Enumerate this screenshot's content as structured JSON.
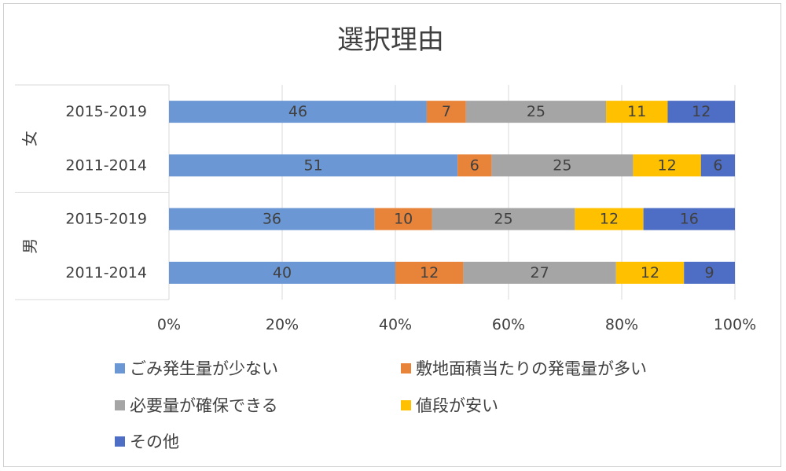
{
  "chart_data": {
    "type": "bar",
    "orientation": "horizontal",
    "stacking": "percent",
    "title": "選択理由",
    "groups": [
      {
        "label": "女",
        "rows": [
          {
            "label": "2015-2019",
            "values": [
              46,
              7,
              25,
              11,
              12
            ]
          },
          {
            "label": "2011-2014",
            "values": [
              51,
              6,
              25,
              12,
              6
            ]
          }
        ]
      },
      {
        "label": "男",
        "rows": [
          {
            "label": "2015-2019",
            "values": [
              36,
              10,
              25,
              12,
              16
            ]
          },
          {
            "label": "2011-2014",
            "values": [
              40,
              12,
              27,
              12,
              9
            ]
          }
        ]
      }
    ],
    "series": [
      {
        "name": "ごみ発生量が少ない",
        "color": "#6B98D4"
      },
      {
        "name": "敷地面積当たりの発電量が多い",
        "color": "#E8833A"
      },
      {
        "name": "必要量が確保できる",
        "color": "#A5A5A5"
      },
      {
        "name": "値段が安い",
        "color": "#FFC000"
      },
      {
        "name": "その他",
        "color": "#4E6DC4"
      }
    ],
    "x_ticks": [
      "0%",
      "20%",
      "40%",
      "60%",
      "80%",
      "100%"
    ],
    "xlim": [
      0,
      100
    ],
    "legend_position": "bottom",
    "grid": "vertical"
  }
}
